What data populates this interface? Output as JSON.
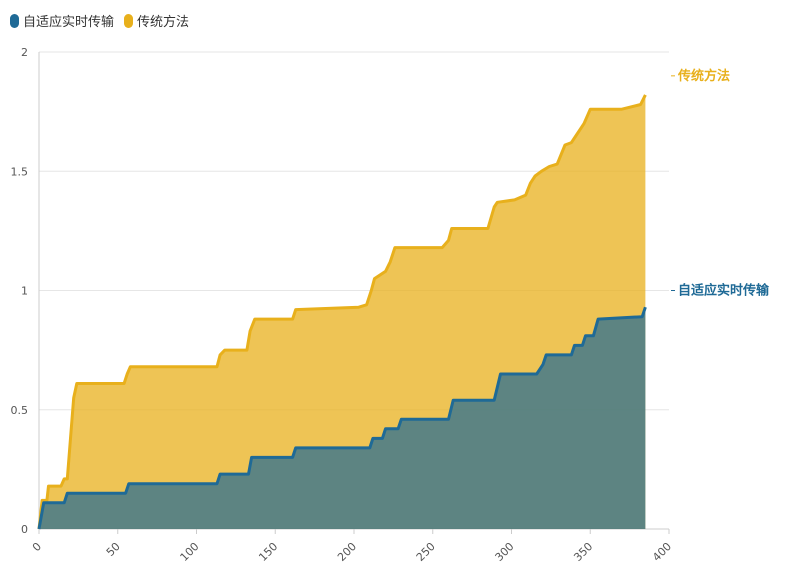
{
  "chart_data": {
    "type": "area",
    "stacked": true,
    "title": "",
    "xlabel": "",
    "ylabel": "",
    "xlim": [
      0,
      400
    ],
    "ylim": [
      0,
      2
    ],
    "x_ticks": [
      "0",
      "50",
      "100",
      "150",
      "200",
      "250",
      "300",
      "350",
      "400"
    ],
    "y_ticks": [
      "0",
      "0.5",
      "1",
      "1.5",
      "2"
    ],
    "grid": "horizontal",
    "legend": "top-left",
    "series": [
      {
        "name": "自适应实时传输",
        "color": "#1f6a96",
        "points": [
          [
            0,
            0
          ],
          [
            3,
            0.11
          ],
          [
            16,
            0.11
          ],
          [
            18,
            0.15
          ],
          [
            55,
            0.15
          ],
          [
            57,
            0.19
          ],
          [
            113,
            0.19
          ],
          [
            115,
            0.23
          ],
          [
            133,
            0.23
          ],
          [
            135,
            0.3
          ],
          [
            161,
            0.3
          ],
          [
            163,
            0.34
          ],
          [
            210,
            0.34
          ],
          [
            212,
            0.38
          ],
          [
            218,
            0.38
          ],
          [
            220,
            0.42
          ],
          [
            228,
            0.42
          ],
          [
            230,
            0.46
          ],
          [
            260,
            0.46
          ],
          [
            263,
            0.54
          ],
          [
            289,
            0.54
          ],
          [
            293,
            0.65
          ],
          [
            316,
            0.65
          ],
          [
            320,
            0.69
          ],
          [
            322,
            0.73
          ],
          [
            338,
            0.73
          ],
          [
            340,
            0.77
          ],
          [
            345,
            0.77
          ],
          [
            347,
            0.81
          ],
          [
            352,
            0.81
          ],
          [
            355,
            0.88
          ],
          [
            383,
            0.89
          ],
          [
            385,
            0.93
          ]
        ]
      },
      {
        "name": "传统方法",
        "color": "#e8b01c",
        "points": [
          [
            0,
            0
          ],
          [
            2,
            0.12
          ],
          [
            5,
            0.12
          ],
          [
            6,
            0.18
          ],
          [
            14,
            0.18
          ],
          [
            16,
            0.21
          ],
          [
            18,
            0.21
          ],
          [
            20,
            0.38
          ],
          [
            22,
            0.55
          ],
          [
            24,
            0.61
          ],
          [
            54,
            0.61
          ],
          [
            56,
            0.65
          ],
          [
            58,
            0.68
          ],
          [
            113,
            0.68
          ],
          [
            115,
            0.73
          ],
          [
            118,
            0.75
          ],
          [
            132,
            0.75
          ],
          [
            134,
            0.83
          ],
          [
            137,
            0.88
          ],
          [
            161,
            0.88
          ],
          [
            163,
            0.92
          ],
          [
            203,
            0.93
          ],
          [
            208,
            0.94
          ],
          [
            211,
            1.0
          ],
          [
            213,
            1.05
          ],
          [
            220,
            1.08
          ],
          [
            223,
            1.12
          ],
          [
            226,
            1.18
          ],
          [
            256,
            1.18
          ],
          [
            260,
            1.21
          ],
          [
            262,
            1.26
          ],
          [
            285,
            1.26
          ],
          [
            289,
            1.35
          ],
          [
            291,
            1.37
          ],
          [
            302,
            1.38
          ],
          [
            309,
            1.4
          ],
          [
            312,
            1.45
          ],
          [
            315,
            1.48
          ],
          [
            319,
            1.5
          ],
          [
            324,
            1.52
          ],
          [
            329,
            1.53
          ],
          [
            334,
            1.61
          ],
          [
            338,
            1.62
          ],
          [
            341,
            1.65
          ],
          [
            346,
            1.7
          ],
          [
            350,
            1.76
          ],
          [
            370,
            1.76
          ],
          [
            382,
            1.78
          ],
          [
            385,
            1.82
          ]
        ]
      }
    ]
  }
}
